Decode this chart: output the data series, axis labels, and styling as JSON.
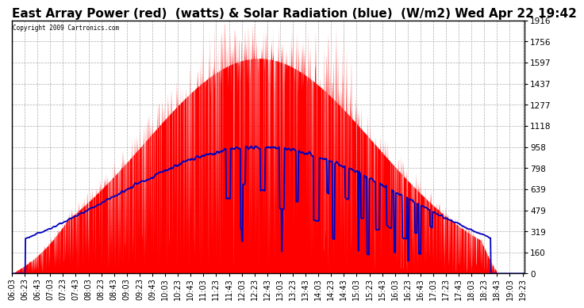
{
  "title": "East Array Power (red)  (watts) & Solar Radiation (blue)  (W/m2) Wed Apr 22 19:42",
  "copyright": "Copyright 2009 Cartronics.com",
  "ymin": 0.0,
  "ymax": 1916.1,
  "yticks": [
    0.0,
    159.7,
    319.3,
    479.0,
    638.7,
    798.4,
    958.0,
    1117.7,
    1277.4,
    1437.0,
    1596.7,
    1756.4,
    1916.1
  ],
  "background_color": "#ffffff",
  "fill_color": "#ff0000",
  "line_color": "#0000bb",
  "grid_color": "#999999",
  "title_fontsize": 11,
  "tick_fontsize": 7.5,
  "xstart_hour": 6,
  "xstart_min": 3,
  "xend_hour": 19,
  "xend_min": 26,
  "peak_hour": 12.5,
  "sigma_power": 3.0,
  "sigma_radiation": 3.8,
  "max_power": 1916.1,
  "max_radiation": 958.0
}
